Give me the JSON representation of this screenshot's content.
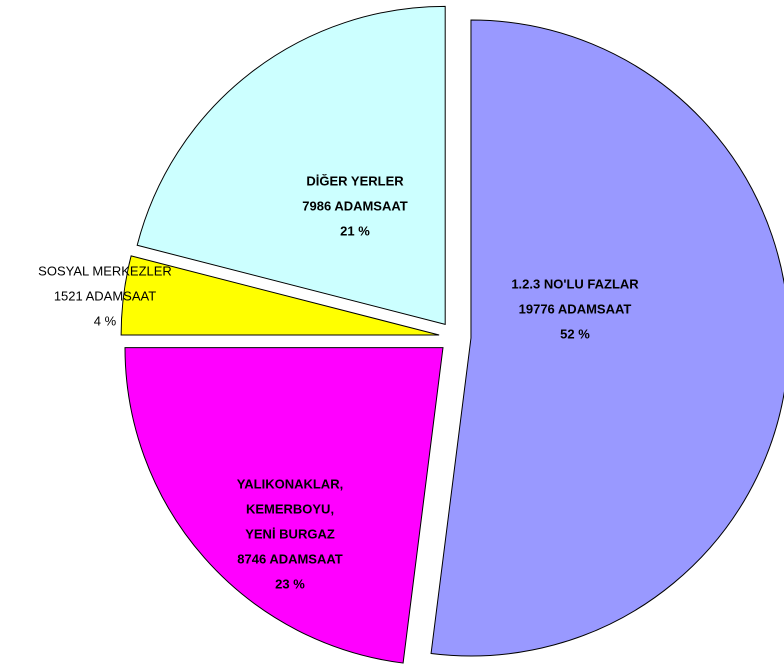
{
  "chart_data": {
    "type": "pie",
    "categories": [
      [
        "1.2.3 NO'LU FAZLAR"
      ],
      [
        "YALIKONAKLAR,",
        "KEMERBOYU,",
        "YENİ BURGAZ"
      ],
      [
        "SOSYAL MERKEZLER"
      ],
      [
        "DİĞER YERLER"
      ]
    ],
    "values": [
      19776,
      8746,
      1521,
      7986
    ],
    "value_labels": [
      "19776 ADAMSAAT",
      "8746 ADAMSAAT",
      "1521 ADAMSAAT",
      "7986 ADAMSAAT"
    ],
    "percent_labels": [
      "52 %",
      "23 %",
      "4 %",
      "21 %"
    ],
    "colors": [
      "#9999ff",
      "#ff00ff",
      "#ffff00",
      "#ccffff"
    ]
  }
}
